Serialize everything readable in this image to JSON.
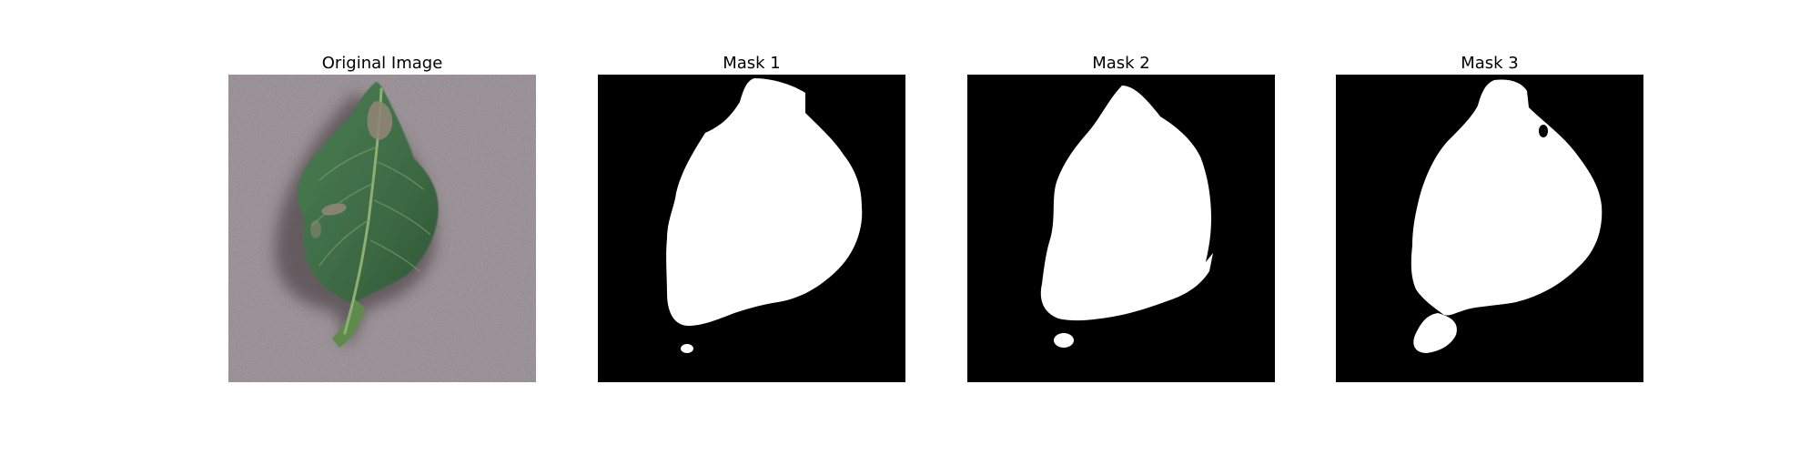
{
  "panels": [
    {
      "title": "Original Image",
      "content": "leaf-photo"
    },
    {
      "title": "Mask 1",
      "content": "segmentation-mask"
    },
    {
      "title": "Mask 2",
      "content": "segmentation-mask"
    },
    {
      "title": "Mask 3",
      "content": "segmentation-mask"
    }
  ],
  "colors": {
    "background": "#ffffff",
    "mask_background": "#000000",
    "mask_foreground": "#ffffff",
    "surface": "#8a8085",
    "leaf": "#3f6e46",
    "leaf_vein": "#8fae72",
    "shadow": "#5b5256"
  }
}
